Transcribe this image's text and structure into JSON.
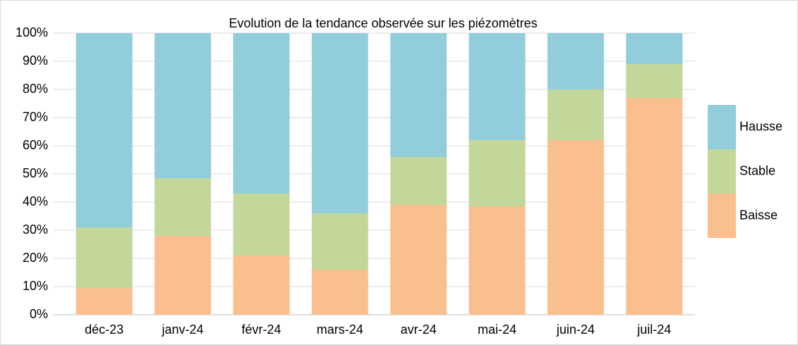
{
  "chart_data": {
    "type": "stacked_bar_percent",
    "title": "Evolution de la tendance observée sur les piézomètres",
    "categories": [
      "déc-23",
      "janv-24",
      "févr-24",
      "mars-24",
      "avr-24",
      "mai-24",
      "juin-24",
      "juil-24"
    ],
    "series": [
      {
        "name": "Baisse",
        "color": "#fabf8f",
        "values": [
          9.5,
          28,
          21,
          16,
          39,
          38.5,
          62,
          77
        ]
      },
      {
        "name": "Stable",
        "color": "#c4d79b",
        "values": [
          21.5,
          20.5,
          22,
          20,
          17,
          23.5,
          18,
          12
        ]
      },
      {
        "name": "Hausse",
        "color": "#92cddc",
        "values": [
          69,
          51.5,
          57,
          64,
          44,
          38,
          20,
          11
        ]
      }
    ],
    "ylim": [
      0,
      100
    ],
    "yticks": [
      {
        "value": 0,
        "label": "0%"
      },
      {
        "value": 10,
        "label": "10%"
      },
      {
        "value": 20,
        "label": "20%"
      },
      {
        "value": 30,
        "label": "30%"
      },
      {
        "value": 40,
        "label": "40%"
      },
      {
        "value": 50,
        "label": "50%"
      },
      {
        "value": 60,
        "label": "60%"
      },
      {
        "value": 70,
        "label": "70%"
      },
      {
        "value": 80,
        "label": "80%"
      },
      {
        "value": 90,
        "label": "90%"
      },
      {
        "value": 100,
        "label": "100%"
      }
    ],
    "grid": true,
    "legend": "right"
  }
}
